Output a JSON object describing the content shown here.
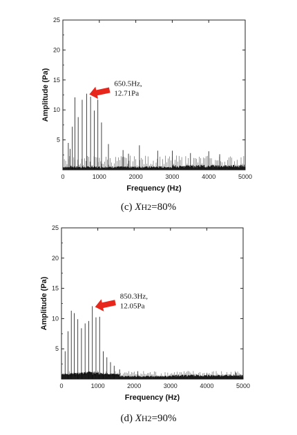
{
  "chart_data": [
    {
      "type": "line",
      "xlabel": "Frequency (Hz)",
      "ylabel": "Amplitude (Pa)",
      "xlim": [
        0,
        5000
      ],
      "ylim": [
        0,
        25
      ],
      "xticks": [
        0,
        1000,
        2000,
        3000,
        4000,
        5000
      ],
      "yticks": [
        5,
        10,
        15,
        20,
        25
      ],
      "grid": false,
      "peaks": [
        {
          "x": 150,
          "y": 4.5
        },
        {
          "x": 200,
          "y": 3.5
        },
        {
          "x": 260,
          "y": 7.2
        },
        {
          "x": 330,
          "y": 12.1
        },
        {
          "x": 420,
          "y": 8.8
        },
        {
          "x": 530,
          "y": 11.7
        },
        {
          "x": 650.5,
          "y": 12.71
        },
        {
          "x": 760,
          "y": 12.2
        },
        {
          "x": 860,
          "y": 9.9
        },
        {
          "x": 960,
          "y": 11.7
        },
        {
          "x": 1060,
          "y": 7.9
        },
        {
          "x": 1250,
          "y": 4.3
        },
        {
          "x": 1650,
          "y": 3.3
        },
        {
          "x": 1800,
          "y": 2.7
        },
        {
          "x": 2100,
          "y": 4.1
        },
        {
          "x": 2600,
          "y": 3.2
        },
        {
          "x": 3000,
          "y": 3.2
        },
        {
          "x": 3500,
          "y": 2.8
        },
        {
          "x": 4000,
          "y": 3.1
        },
        {
          "x": 4300,
          "y": 2.6
        }
      ],
      "annotation": {
        "text_line1": "650.5Hz,",
        "text_line2": "12.71Pa",
        "x": 650.5,
        "y": 12.71
      },
      "caption": {
        "prefix": "(c) ",
        "var": "X",
        "sub": "H2",
        "suffix": "=80%"
      }
    },
    {
      "type": "line",
      "xlabel": "Frequency (Hz)",
      "ylabel": "Amplitude (Pa)",
      "xlim": [
        0,
        5000
      ],
      "ylim": [
        0,
        25
      ],
      "xticks": [
        0,
        1000,
        2000,
        3000,
        4000,
        5000
      ],
      "yticks": [
        5,
        10,
        15,
        20,
        25
      ],
      "grid": false,
      "peaks": [
        {
          "x": 100,
          "y": 4.6
        },
        {
          "x": 180,
          "y": 7.9
        },
        {
          "x": 270,
          "y": 11.3
        },
        {
          "x": 350,
          "y": 10.9
        },
        {
          "x": 450,
          "y": 9.9
        },
        {
          "x": 550,
          "y": 8.4
        },
        {
          "x": 650,
          "y": 9.2
        },
        {
          "x": 750,
          "y": 9.6
        },
        {
          "x": 850.3,
          "y": 12.05
        },
        {
          "x": 950,
          "y": 10.2
        },
        {
          "x": 1050,
          "y": 10.3
        },
        {
          "x": 1150,
          "y": 4.6
        },
        {
          "x": 1250,
          "y": 3.6
        },
        {
          "x": 1350,
          "y": 2.8
        },
        {
          "x": 1450,
          "y": 2.2
        },
        {
          "x": 1600,
          "y": 1.6
        },
        {
          "x": 2100,
          "y": 1.3
        },
        {
          "x": 4000,
          "y": 0.9
        },
        {
          "x": 4800,
          "y": 1.1
        }
      ],
      "annotation": {
        "text_line1": "850.3Hz,",
        "text_line2": "12.05Pa",
        "x": 850.3,
        "y": 12.05
      },
      "caption": {
        "prefix": "(d) ",
        "var": "X",
        "sub": "H2",
        "suffix": "=90%"
      }
    }
  ],
  "colors": {
    "line": "#111111",
    "arrow": "#e8271c",
    "axis": "#222222"
  }
}
